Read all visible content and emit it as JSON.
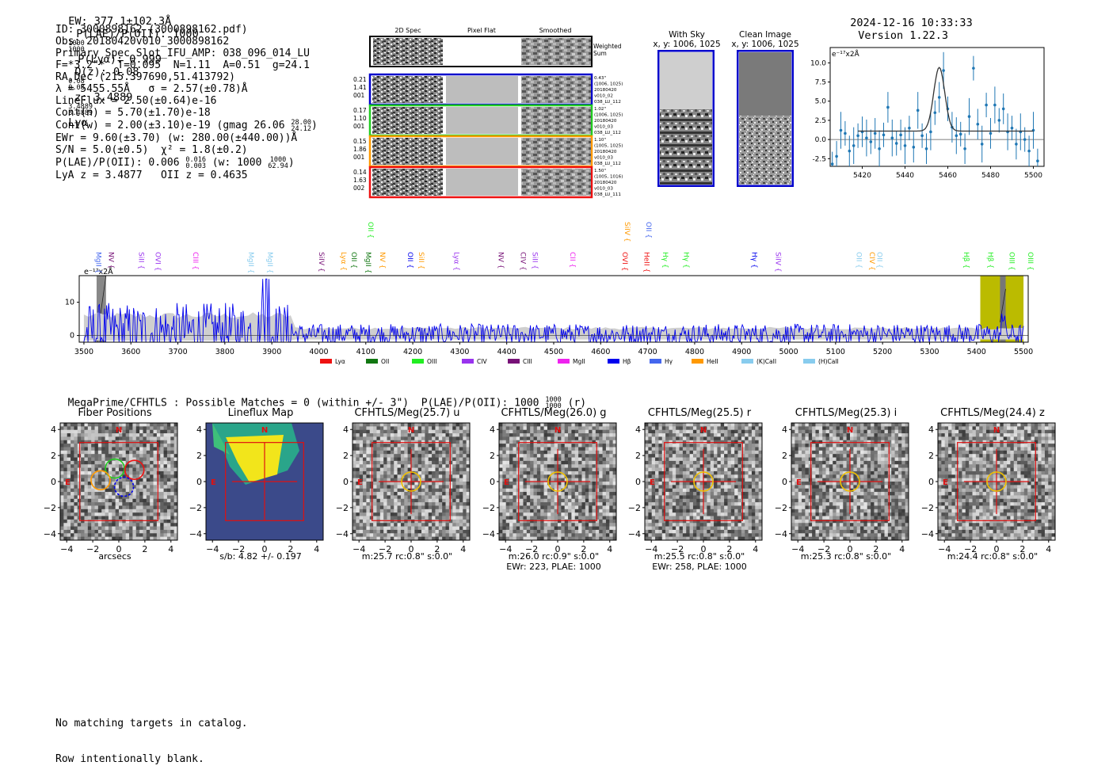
{
  "header": {
    "ew_text": "EW: 377.1±102.3Å",
    "plae_text": "P(LAE)/P(OII): 1000",
    "plae_hi": "1000",
    "plae_lo": "1000",
    "plya_text": "P(Lyα): 0.999",
    "qz_text": "Q(z): 0.08",
    "qz_hi": "0.08",
    "qz_lo": "0.08",
    "z_text": "z: 3.4889",
    "z_hi": "3.4889",
    "z_lo": "3.4889",
    "z_line": "Lyα",
    "datetime": "2024-12-16 10:33:33",
    "version": "Version 1.22.3"
  },
  "info": {
    "l1": "ID: 3000898162 (3000898162.pdf)",
    "l2": "Obs: 20180420v010_3000898162",
    "l3": "Primary Spec_Slot_IFU_AMP: 038_096_014_LU",
    "l4": "F=*3.2\"*  T=0.095  N=1.11  A=0.51  g=24.1",
    "l5": "RA,Dec (215.397690,51.413792)",
    "l6": "λ = 5455.55Å   σ = 2.57(±0.78)Å",
    "l7": "LineFlux = 2.50(±0.64)e-16",
    "l8": "Cont(n) = 5.70(±1.70)e-18",
    "l9a": "Cont(w) = 2.00(±3.10)e-19 (gmag 26.06",
    "l9_hi": "28.00",
    "l9_lo": "24.12",
    "l9b": ")",
    "l10": "EWr = 9.60(±3.70) (w: 280.00(±440.00))Å",
    "l11": "S/N = 5.0(±0.5)  χ² = 1.8(±0.2)",
    "l12a": "P(LAE)/P(OII): 0.006",
    "l12_hi": "0.016",
    "l12_lo": "0.003",
    "l12b": "(w: 1000",
    "l12w_hi": "1000",
    "l12w_lo": "62.94",
    "l12c": ")",
    "l13": "LyA z = 3.4877   OII z = 0.4635"
  },
  "fibers_panel": {
    "col_2d": "2D Spec",
    "col_flat": "Pixel Flat",
    "col_smooth": "Smoothed",
    "weighted_label": "Weighted Sum",
    "rows": [
      {
        "left": [
          "0.21",
          "1.41",
          "001"
        ],
        "right": [
          "0.43\"",
          "(1006, 1025)",
          "20180420",
          "v010_02",
          "038_LU_112"
        ],
        "color": "#0000cc"
      },
      {
        "left": [
          "0.17",
          "1.10",
          "001"
        ],
        "right": [
          "1.02\"",
          "(1006, 1025)",
          "20180420",
          "v010_03",
          "038_LU_112"
        ],
        "color": "#22cc22"
      },
      {
        "left": [
          "0.15",
          "1.86",
          "001"
        ],
        "right": [
          "1.10\"",
          "(1005, 1025)",
          "20180420",
          "v010_03",
          "038_LU_112"
        ],
        "color": "#ff9900"
      },
      {
        "left": [
          "0.14",
          "1.63",
          "002"
        ],
        "right": [
          "1.50\"",
          "(1005, 1016)",
          "20180420",
          "v010_03",
          "038_LU_111"
        ],
        "color": "#ee1111"
      }
    ]
  },
  "sky_panel": {
    "title1": "With Sky",
    "title2": "x, y: 1006, 1025"
  },
  "clean_panel": {
    "title1": "Clean Image",
    "title2": "x, y: 1006, 1025"
  },
  "line_fit": {
    "unit": "e⁻¹⁷x2Å",
    "yticks": [
      "10.0",
      "7.5",
      "5.0",
      "2.5",
      "0.0",
      "-2.5"
    ],
    "xticks": [
      "5420",
      "5440",
      "5460",
      "5480",
      "5500"
    ]
  },
  "full_spec": {
    "unit": "e⁻¹⁷x2Å",
    "yticks": [
      "10",
      "0"
    ],
    "xticks": [
      "3500",
      "3600",
      "3700",
      "3800",
      "3900",
      "4000",
      "4100",
      "4200",
      "4300",
      "4400",
      "4500",
      "4600",
      "4700",
      "4800",
      "4900",
      "5000",
      "5100",
      "5200",
      "5300",
      "5400",
      "5500"
    ],
    "legend": [
      {
        "name": "Lyα",
        "color": "#ee1111"
      },
      {
        "name": "OII",
        "color": "#117711"
      },
      {
        "name": "OIII",
        "color": "#22ee22"
      },
      {
        "name": "CIV",
        "color": "#9933ee"
      },
      {
        "name": "CIII",
        "color": "#771177"
      },
      {
        "name": "MgII",
        "color": "#ee22ee"
      },
      {
        "name": "Hβ",
        "color": "#0000ee"
      },
      {
        "name": "Hγ",
        "color": "#4466ee"
      },
      {
        "name": "HeII",
        "color": "#ff9900"
      },
      {
        "name": "(K)CaII",
        "color": "#88ccee"
      },
      {
        "name": "(H)CaII",
        "color": "#88ccee"
      }
    ],
    "line_labels": [
      {
        "name": "MgII",
        "wave": 3521,
        "color": "#4466ee",
        "row": 0
      },
      {
        "name": "NV",
        "wave": 3548,
        "color": "#771177",
        "row": 0
      },
      {
        "name": "SiII",
        "wave": 3612,
        "color": "#9933ee",
        "row": 0
      },
      {
        "name": "OVI",
        "wave": 3648,
        "color": "#9933ee",
        "row": 0
      },
      {
        "name": "CIII",
        "wave": 3728,
        "color": "#ee22ee",
        "row": 0
      },
      {
        "name": "MgII",
        "wave": 3846,
        "color": "#88ccee",
        "row": 0
      },
      {
        "name": "MgII",
        "wave": 3886,
        "color": "#88ccee",
        "row": 0
      },
      {
        "name": "SiIV",
        "wave": 3996,
        "color": "#771177",
        "row": 0
      },
      {
        "name": "Lyα",
        "wave": 4043,
        "color": "#ff9900",
        "row": 0
      },
      {
        "name": "OII",
        "wave": 4065,
        "color": "#117711",
        "row": 0
      },
      {
        "name": "MgII",
        "wave": 4095,
        "color": "#117711",
        "row": 0
      },
      {
        "name": "OII",
        "wave": 4100,
        "color": "#22ee22",
        "row": 1
      },
      {
        "name": "NV",
        "wave": 4126,
        "color": "#ff9900",
        "row": 0
      },
      {
        "name": "OII",
        "wave": 4185,
        "color": "#0000ee",
        "row": 0
      },
      {
        "name": "SiII",
        "wave": 4208,
        "color": "#ff9900",
        "row": 0
      },
      {
        "name": "Lyα",
        "wave": 4283,
        "color": "#9933ee",
        "row": 0
      },
      {
        "name": "NV",
        "wave": 4378,
        "color": "#771177",
        "row": 0
      },
      {
        "name": "CIV",
        "wave": 4425,
        "color": "#771177",
        "row": 0
      },
      {
        "name": "SiII",
        "wave": 4450,
        "color": "#9933ee",
        "row": 0
      },
      {
        "name": "CII",
        "wave": 4530,
        "color": "#ee22ee",
        "row": 0
      },
      {
        "name": "OVI",
        "wave": 4642,
        "color": "#ee1111",
        "row": 0
      },
      {
        "name": "SiIV",
        "wave": 4647,
        "color": "#ff9900",
        "row": 1
      },
      {
        "name": "HeII",
        "wave": 4688,
        "color": "#ee1111",
        "row": 0
      },
      {
        "name": "OII",
        "wave": 4692,
        "color": "#4466ee",
        "row": 1
      },
      {
        "name": "Hγ",
        "wave": 4728,
        "color": "#22ee22",
        "row": 0
      },
      {
        "name": "Hγ",
        "wave": 4772,
        "color": "#22ee22",
        "row": 0
      },
      {
        "name": "Hγ",
        "wave": 4917,
        "color": "#0000ee",
        "row": 0
      },
      {
        "name": "SiIV",
        "wave": 4968,
        "color": "#9933ee",
        "row": 0
      },
      {
        "name": "OII",
        "wave": 5140,
        "color": "#88ccee",
        "row": 0
      },
      {
        "name": "CIV",
        "wave": 5168,
        "color": "#ff9900",
        "row": 0
      },
      {
        "name": "OII",
        "wave": 5184,
        "color": "#88ccee",
        "row": 0
      },
      {
        "name": "Hβ",
        "wave": 5368,
        "color": "#22ee22",
        "row": 0
      },
      {
        "name": "Hβ",
        "wave": 5420,
        "color": "#22ee22",
        "row": 0
      },
      {
        "name": "OIII",
        "wave": 5465,
        "color": "#22ee22",
        "row": 0
      },
      {
        "name": "OIII",
        "wave": 5505,
        "color": "#22ee22",
        "row": 0
      }
    ]
  },
  "megaprime": {
    "text": "MegaPrime/CFHTLS : Possible Matches = 0 (within +/- 3\")  P(LAE)/P(OII): 1000",
    "hi": "1000",
    "lo": "1000",
    "suffix": "(r)"
  },
  "cutouts": [
    {
      "title": "Fiber Positions",
      "sub1": "arcsecs",
      "sub2": "",
      "kind": "fiber"
    },
    {
      "title": "Lineflux Map",
      "sub1": "s/b: 4.82 +/- 0.197",
      "sub2": "",
      "kind": "flux"
    },
    {
      "title": "CFHTLS/Meg(25.7) u",
      "sub1": "m:25.7 rc:0.8\"  s:0.0\"",
      "sub2": "",
      "kind": "noise"
    },
    {
      "title": "CFHTLS/Meg(26.0) g",
      "sub1": "m:26.0 rc:0.9\"  s:0.0\"",
      "sub2": "EWr: 223, PLAE: 1000",
      "kind": "noise"
    },
    {
      "title": "CFHTLS/Meg(25.5) r",
      "sub1": "m:25.5 rc:0.8\"  s:0.0\"",
      "sub2": "EWr: 258, PLAE: 1000",
      "kind": "noise"
    },
    {
      "title": "CFHTLS/Meg(25.3) i",
      "sub1": "m:25.3 rc:0.8\"  s:0.0\"",
      "sub2": "",
      "kind": "noise"
    },
    {
      "title": "CFHTLS/Meg(24.4) z",
      "sub1": "m:24.4 rc:0.8\"  s:0.0\"",
      "sub2": "",
      "kind": "noise"
    }
  ],
  "cutout_ticks": {
    "y": [
      "4",
      "2",
      "0",
      "−2",
      "−4"
    ],
    "x": [
      "−4",
      "−2",
      "0",
      "2",
      "4"
    ],
    "north": "N",
    "east": "E"
  },
  "footer": {
    "l1": "No matching targets in catalog.",
    "l2": "Row intentionally blank."
  },
  "chart_data": [
    {
      "type": "scatter",
      "title": "",
      "ylabel": "e⁻¹⁷x2Å",
      "xlim": [
        5405,
        5505
      ],
      "ylim": [
        -3.5,
        12
      ],
      "x": [
        5406,
        5408,
        5410,
        5412,
        5414,
        5416,
        5418,
        5420,
        5422,
        5424,
        5426,
        5428,
        5430,
        5432,
        5434,
        5436,
        5438,
        5440,
        5442,
        5444,
        5446,
        5448,
        5450,
        5452,
        5454,
        5456,
        5458,
        5460,
        5462,
        5464,
        5466,
        5468,
        5470,
        5472,
        5474,
        5476,
        5478,
        5480,
        5482,
        5484,
        5486,
        5488,
        5490,
        5492,
        5494,
        5496,
        5498,
        5500,
        5502
      ],
      "y": [
        -3.2,
        -2.2,
        1.2,
        0.8,
        -1.5,
        -0.8,
        0.5,
        1.0,
        0.2,
        -0.3,
        0.8,
        -1.2,
        0.6,
        4.2,
        0.2,
        -0.5,
        0.6,
        -0.8,
        1.5,
        -1.0,
        3.8,
        0.5,
        -1.2,
        1.0,
        3.5,
        5.5,
        9.0,
        4.0,
        1.6,
        0.5,
        0.7,
        -1.2,
        3.0,
        9.3,
        2.0,
        -0.6,
        4.5,
        0.8,
        4.5,
        2.5,
        4.0,
        1.0,
        1.5,
        -0.6,
        1.0,
        0.0,
        -1.5,
        1.2,
        -2.8
      ],
      "fit": {
        "center": 5456,
        "sigma": 2.57,
        "amplitude": 8.3,
        "continuum": 1.1
      }
    },
    {
      "type": "line",
      "title": "",
      "ylabel": "e⁻¹⁷x2Å",
      "xlim": [
        3490,
        5510
      ],
      "ylim": [
        -2,
        18
      ],
      "highlight_region": [
        5408,
        5500
      ],
      "line_wave": 5455.55
    }
  ]
}
